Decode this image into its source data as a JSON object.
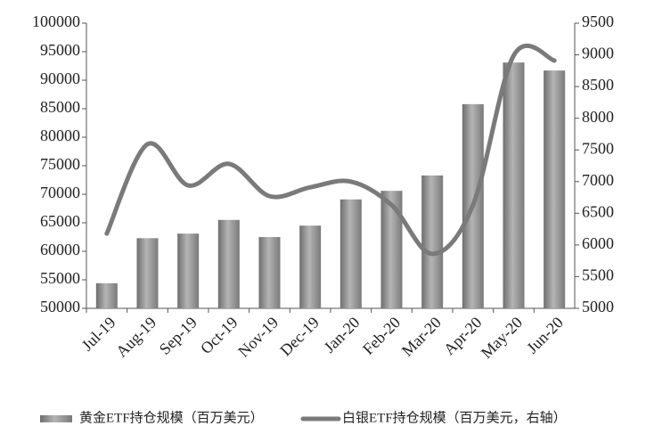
{
  "chart_data": {
    "type": "bar-line",
    "categories": [
      "Jul-19",
      "Aug-19",
      "Sep-19",
      "Oct-19",
      "Nov-19",
      "Dec-19",
      "Jan-20",
      "Feb-20",
      "Mar-20",
      "Apr-20",
      "May-20",
      "Jun-20"
    ],
    "series": [
      {
        "name": "黄金ETF持仓规模（百万美元）",
        "color": "#8c8c8c",
        "type": "bar",
        "values": [
          54400,
          62300,
          63100,
          65500,
          62500,
          64500,
          69100,
          70600,
          73300,
          85800,
          93100,
          91700
        ]
      },
      {
        "name": "白银ETF持仓规模（百万美元，右轴）",
        "color": "#7a7a7a",
        "type": "line",
        "axis": "y2",
        "values": [
          6180,
          7590,
          6940,
          7280,
          6770,
          6910,
          7000,
          6630,
          5860,
          6630,
          8990,
          8910
        ]
      }
    ],
    "ylim": [
      50000,
      100000
    ],
    "yticks": [
      50000,
      55000,
      60000,
      65000,
      70000,
      75000,
      80000,
      85000,
      90000,
      95000,
      100000
    ],
    "y2lim": [
      5000,
      9500
    ],
    "y2ticks": [
      5000,
      5500,
      6000,
      6500,
      7000,
      7500,
      8000,
      8500,
      9000,
      9500
    ]
  }
}
